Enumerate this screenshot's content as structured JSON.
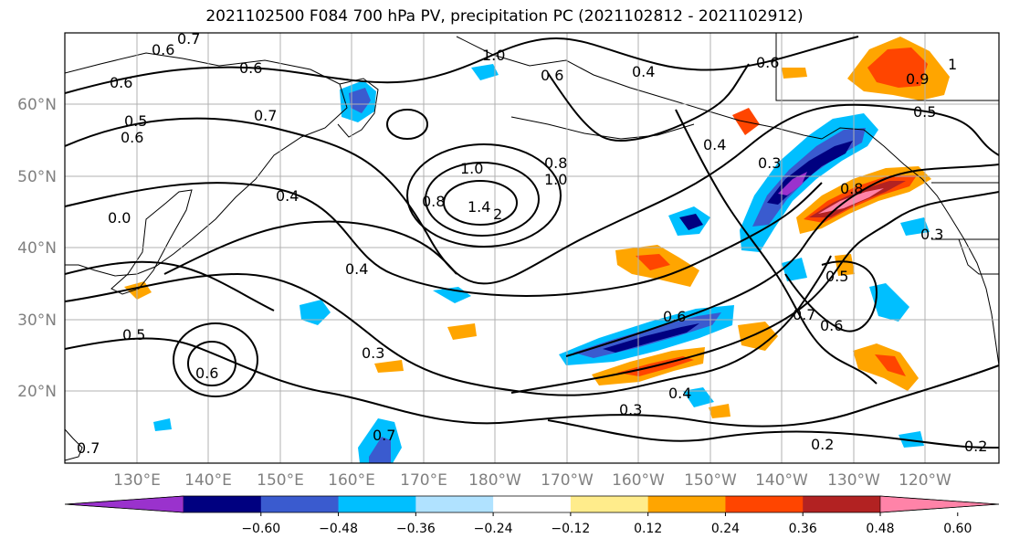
{
  "title": "2021102500 F084 700 hPa PV, precipitation PC (2021102812 - 2021102912)",
  "lat_labels": [
    "60°N",
    "50°N",
    "40°N",
    "30°N",
    "20°N"
  ],
  "lon_labels": [
    "130°E",
    "140°E",
    "150°E",
    "160°E",
    "170°E",
    "180°W",
    "170°W",
    "160°W",
    "150°W",
    "140°W",
    "130°W",
    "120°W"
  ],
  "colorbar": {
    "ticks": [
      "−0.60",
      "−0.48",
      "−0.36",
      "−0.24",
      "−0.12",
      "0.12",
      "0.24",
      "0.36",
      "0.48",
      "0.60"
    ],
    "colors": [
      "#9a32cd",
      "#000080",
      "#3a5bcf",
      "#00bfff",
      "#b0e2ff",
      "#ffffff",
      "#ffec8b",
      "#ffa500",
      "#ff4500",
      "#b22222",
      "#ff83a8"
    ]
  },
  "contour_labels": [
    {
      "text": "0.7"
    },
    {
      "text": "0.6"
    },
    {
      "text": "0.6"
    },
    {
      "text": "0.6"
    },
    {
      "text": "0.5"
    },
    {
      "text": "0.6"
    },
    {
      "text": "0.7"
    },
    {
      "text": "1.0"
    },
    {
      "text": "0.4"
    },
    {
      "text": "0.6"
    },
    {
      "text": "0.9"
    },
    {
      "text": "1"
    },
    {
      "text": "0.5"
    },
    {
      "text": "0.4"
    },
    {
      "text": "0.3"
    },
    {
      "text": "0.4"
    },
    {
      "text": "1.0"
    },
    {
      "text": "0.8"
    },
    {
      "text": "1.4"
    },
    {
      "text": "2"
    },
    {
      "text": "1.0"
    },
    {
      "text": "0.8"
    },
    {
      "text": "0.3"
    },
    {
      "text": "0.4"
    },
    {
      "text": "0.6"
    },
    {
      "text": "0.5"
    },
    {
      "text": "0.7"
    },
    {
      "text": "0.6"
    },
    {
      "text": "0.5"
    },
    {
      "text": "0.3"
    },
    {
      "text": "0.6"
    },
    {
      "text": "0.3"
    },
    {
      "text": "0.4"
    },
    {
      "text": "0.2"
    },
    {
      "text": "0.2"
    },
    {
      "text": "0.7"
    },
    {
      "text": "0.7"
    },
    {
      "text": "0.0"
    },
    {
      "text": "0.8"
    },
    {
      "text": "0.6"
    }
  ]
}
